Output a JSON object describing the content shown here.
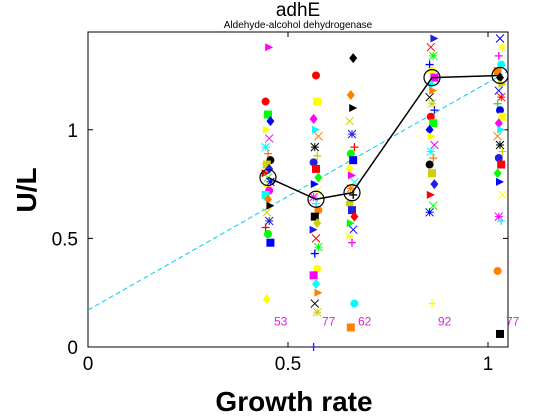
{
  "chart_data": {
    "type": "scatter",
    "title": "adhE",
    "subtitle": "Aldehyde-alcohol dehydrogenase",
    "xlabel": "Growth rate",
    "ylabel": "U/L",
    "xlim": [
      0,
      1.05
    ],
    "ylim": [
      0,
      1.45
    ],
    "xticks": [
      0,
      0.5,
      1
    ],
    "yticks": [
      0,
      0.5,
      1
    ],
    "xtick_labels": [
      "0",
      "0.5",
      "1"
    ],
    "ytick_labels": [
      "0",
      "0.5",
      "1"
    ],
    "grid": false,
    "series": [
      {
        "style": "mean-line",
        "color": "#000000",
        "x": [
          0.45,
          0.57,
          0.66,
          0.86,
          1.03
        ],
        "y": [
          0.78,
          0.68,
          0.71,
          1.24,
          1.25
        ]
      },
      {
        "style": "fit-line-dashed",
        "color": "#00ccee",
        "x": [
          0,
          1.05
        ],
        "y": [
          0.17,
          1.27
        ]
      }
    ],
    "counts": [
      {
        "x": 0.45,
        "label": "53"
      },
      {
        "x": 0.57,
        "label": "77"
      },
      {
        "x": 0.66,
        "label": "62"
      },
      {
        "x": 0.86,
        "label": "92"
      },
      {
        "x": 1.03,
        "label": "77"
      }
    ],
    "scatter_groups": [
      {
        "x": 0.45,
        "y": [
          1.13,
          1.07,
          1.04,
          1.0,
          0.96,
          0.92,
          0.89,
          0.86,
          0.84,
          0.82,
          0.8,
          0.78,
          0.76,
          0.74,
          0.72,
          0.7,
          0.68,
          0.65,
          0.62,
          0.58,
          0.55,
          0.52,
          0.48,
          0.22,
          1.38
        ]
      },
      {
        "x": 0.57,
        "y": [
          1.13,
          1.05,
          1.0,
          0.97,
          0.92,
          0.88,
          0.85,
          0.82,
          0.78,
          0.75,
          0.72,
          0.69,
          0.66,
          0.63,
          0.6,
          0.57,
          0.54,
          0.5,
          0.46,
          0.43,
          0.36,
          0.33,
          0.29,
          0.25,
          0.2,
          0.16,
          0.0,
          1.25
        ]
      },
      {
        "x": 0.66,
        "y": [
          1.16,
          1.1,
          1.04,
          0.98,
          0.92,
          0.89,
          0.86,
          0.82,
          0.79,
          0.76,
          0.73,
          0.7,
          0.66,
          0.63,
          0.6,
          0.57,
          0.54,
          0.51,
          0.48,
          0.2,
          0.09,
          1.33
        ]
      },
      {
        "x": 0.86,
        "y": [
          1.42,
          1.38,
          1.34,
          1.3,
          1.27,
          1.24,
          1.21,
          1.18,
          1.15,
          1.12,
          1.09,
          1.06,
          1.03,
          1.0,
          0.97,
          0.93,
          0.9,
          0.87,
          0.84,
          0.8,
          0.75,
          0.7,
          0.65,
          0.62,
          0.2
        ]
      },
      {
        "x": 1.03,
        "y": [
          1.42,
          1.38,
          1.34,
          1.3,
          1.27,
          1.24,
          1.21,
          1.18,
          1.15,
          1.12,
          1.09,
          1.06,
          1.03,
          1.0,
          0.97,
          0.93,
          0.9,
          0.87,
          0.84,
          0.8,
          0.76,
          0.7,
          0.6,
          0.58,
          0.35,
          0.06
        ]
      }
    ],
    "marker_colors": [
      "#ff0000",
      "#00ff00",
      "#0000ff",
      "#ffff00",
      "#ff00ff",
      "#00ffff",
      "#ff8000",
      "#000000",
      "#d0d000",
      "#2020e0"
    ]
  }
}
